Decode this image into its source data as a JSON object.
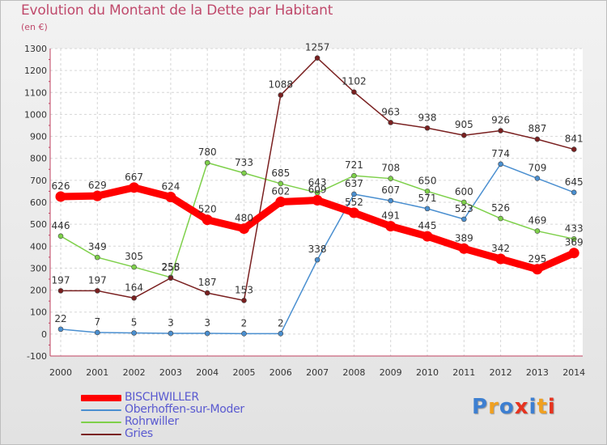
{
  "chart_data": {
    "type": "line",
    "title": "Evolution du Montant de la Dette par Habitant",
    "subtitle": "(en €)",
    "categories": [
      "2000",
      "2001",
      "2002",
      "2003",
      "2004",
      "2005",
      "2006",
      "2007",
      "2008",
      "2009",
      "2010",
      "2011",
      "2012",
      "2013",
      "2014"
    ],
    "ylim": [
      -100,
      1300
    ],
    "yticks": [
      "-100",
      "0",
      "100",
      "200",
      "300",
      "400",
      "500",
      "600",
      "700",
      "800",
      "900",
      "1000",
      "1100",
      "1200",
      "1300"
    ],
    "grid": true,
    "legend_position": "bottom-left",
    "series": [
      {
        "name": "BISCHWILLER",
        "color": "#ff0000",
        "values": [
          626,
          629,
          667,
          624,
          520,
          480,
          602,
          609,
          552,
          491,
          445,
          389,
          342,
          295,
          369
        ]
      },
      {
        "name": "Oberhoffen-sur-Moder",
        "color": "#4a8fd0",
        "values": [
          22,
          7,
          5,
          3,
          3,
          2,
          2,
          338,
          637,
          607,
          571,
          523,
          774,
          709,
          645
        ]
      },
      {
        "name": "Rohrwiller",
        "color": "#7ed04a",
        "values": [
          446,
          349,
          305,
          258,
          780,
          733,
          685,
          643,
          721,
          708,
          650,
          600,
          526,
          469,
          433
        ]
      },
      {
        "name": "Gries",
        "color": "#7a2020",
        "values": [
          197,
          197,
          164,
          255,
          187,
          153,
          1088,
          1257,
          1102,
          963,
          938,
          905,
          926,
          887,
          841
        ]
      }
    ]
  },
  "logo": {
    "letters": [
      "P",
      "r",
      "o",
      "x",
      "i",
      "t",
      "i"
    ],
    "colors": [
      "#3d7fd1",
      "#f0a020",
      "#3d7fd1",
      "#e6331f",
      "#3d7fd1",
      "#f0a020",
      "#e6331f"
    ]
  }
}
